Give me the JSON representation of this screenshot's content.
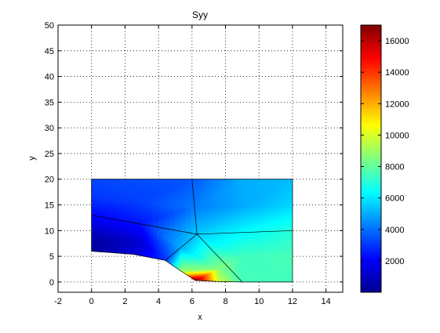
{
  "chart_data": {
    "type": "heatmap",
    "title": "Syy",
    "xlabel": "x",
    "ylabel": "y",
    "xlim": [
      -2,
      15
    ],
    "ylim": [
      -2,
      50
    ],
    "xticks": [
      "-2",
      "0",
      "2",
      "4",
      "6",
      "8",
      "10",
      "12",
      "14"
    ],
    "yticks": [
      "0",
      "5",
      "10",
      "15",
      "20",
      "25",
      "30",
      "35",
      "40",
      "45",
      "50"
    ],
    "grid": true,
    "colormap": "jet",
    "clim": [
      0,
      17000
    ],
    "colorbar_ticks": [
      "2000",
      "4000",
      "6000",
      "8000",
      "10000",
      "12000",
      "14000",
      "16000"
    ],
    "nodes": {
      "p00": [
        0,
        6,
        500
      ],
      "p01": [
        2.5,
        5.4,
        1500
      ],
      "p02": [
        4.4,
        4.2,
        3000
      ],
      "p03": [
        5.4,
        2.0,
        9000
      ],
      "p04": [
        6.2,
        0.3,
        17000
      ],
      "p05": [
        7.5,
        0.1,
        10000
      ],
      "p06": [
        9.0,
        0,
        7500
      ],
      "p07": [
        12,
        0,
        7500
      ],
      "p08": [
        12,
        5,
        7600
      ],
      "p09": [
        12,
        10,
        7000
      ],
      "p10": [
        12,
        15,
        5700
      ],
      "p11": [
        12,
        20,
        5300
      ],
      "p12": [
        9,
        20,
        5000
      ],
      "p13": [
        6,
        20,
        3600
      ],
      "p14": [
        3,
        20,
        3400
      ],
      "p15": [
        0,
        20,
        3300
      ],
      "p16": [
        0,
        16.5,
        3000
      ],
      "p17": [
        0,
        13,
        2200
      ],
      "p18": [
        0,
        9.5,
        1000
      ],
      "p19": [
        6.3,
        9.3,
        5500
      ],
      "p20": [
        3.0,
        11.6,
        2500
      ],
      "p21": [
        3.0,
        15.5,
        3200
      ],
      "p22": [
        6.2,
        14.5,
        4200
      ],
      "p23": [
        9.2,
        14.8,
        5000
      ],
      "p24": [
        9.2,
        9.6,
        6400
      ],
      "p25": [
        9.0,
        5.0,
        7400
      ],
      "p26": [
        7.6,
        2.5,
        8600
      ],
      "p27": [
        5.3,
        6.7,
        5000
      ],
      "p28": [
        3.0,
        7.5,
        1400
      ],
      "p29": [
        1.2,
        7.8,
        800
      ]
    },
    "triangles": [
      [
        "p00",
        "p01",
        "p29"
      ],
      [
        "p01",
        "p28",
        "p29"
      ],
      [
        "p01",
        "p02",
        "p28"
      ],
      [
        "p02",
        "p27",
        "p28"
      ],
      [
        "p00",
        "p29",
        "p18"
      ],
      [
        "p29",
        "p20",
        "p18"
      ],
      [
        "p29",
        "p28",
        "p20"
      ],
      [
        "p28",
        "p27",
        "p20"
      ],
      [
        "p27",
        "p19",
        "p20"
      ],
      [
        "p18",
        "p20",
        "p17"
      ],
      [
        "p17",
        "p20",
        "p21"
      ],
      [
        "p17",
        "p21",
        "p16"
      ],
      [
        "p16",
        "p21",
        "p15"
      ],
      [
        "p15",
        "p21",
        "p14"
      ],
      [
        "p14",
        "p21",
        "p13"
      ],
      [
        "p21",
        "p22",
        "p13"
      ],
      [
        "p20",
        "p19",
        "p22"
      ],
      [
        "p20",
        "p22",
        "p21"
      ],
      [
        "p13",
        "p22",
        "p12"
      ],
      [
        "p22",
        "p23",
        "p12"
      ],
      [
        "p22",
        "p19",
        "p23"
      ],
      [
        "p19",
        "p24",
        "p23"
      ],
      [
        "p12",
        "p23",
        "p11"
      ],
      [
        "p23",
        "p10",
        "p11"
      ],
      [
        "p23",
        "p24",
        "p10"
      ],
      [
        "p24",
        "p09",
        "p10"
      ],
      [
        "p02",
        "p03",
        "p27"
      ],
      [
        "p03",
        "p26",
        "p27"
      ],
      [
        "p03",
        "p04",
        "p26"
      ],
      [
        "p04",
        "p05",
        "p26"
      ],
      [
        "p05",
        "p06",
        "p26"
      ],
      [
        "p27",
        "p26",
        "p19"
      ],
      [
        "p26",
        "p25",
        "p19"
      ],
      [
        "p19",
        "p25",
        "p24"
      ],
      [
        "p26",
        "p06",
        "p25"
      ],
      [
        "p06",
        "p07",
        "p25"
      ],
      [
        "p07",
        "p08",
        "p25"
      ],
      [
        "p25",
        "p08",
        "p24"
      ],
      [
        "p08",
        "p09",
        "p24"
      ]
    ],
    "outline": [
      "p00",
      "p01",
      "p02",
      "p03",
      "p04",
      "p05",
      "p06",
      "p07",
      "p08",
      "p09",
      "p10",
      "p11",
      "p12",
      "p13",
      "p14",
      "p15",
      "p16",
      "p17",
      "p18"
    ],
    "element_edges": [
      [
        [
          0,
          13
        ],
        [
          6.3,
          9.3
        ]
      ],
      [
        [
          6,
          20
        ],
        [
          6.3,
          9.3
        ]
      ],
      [
        [
          6.3,
          9.3
        ],
        [
          12,
          10
        ]
      ],
      [
        [
          6.3,
          9.3
        ],
        [
          9,
          0
        ]
      ],
      [
        [
          6.3,
          9.3
        ],
        [
          4.4,
          4.2
        ]
      ]
    ]
  }
}
